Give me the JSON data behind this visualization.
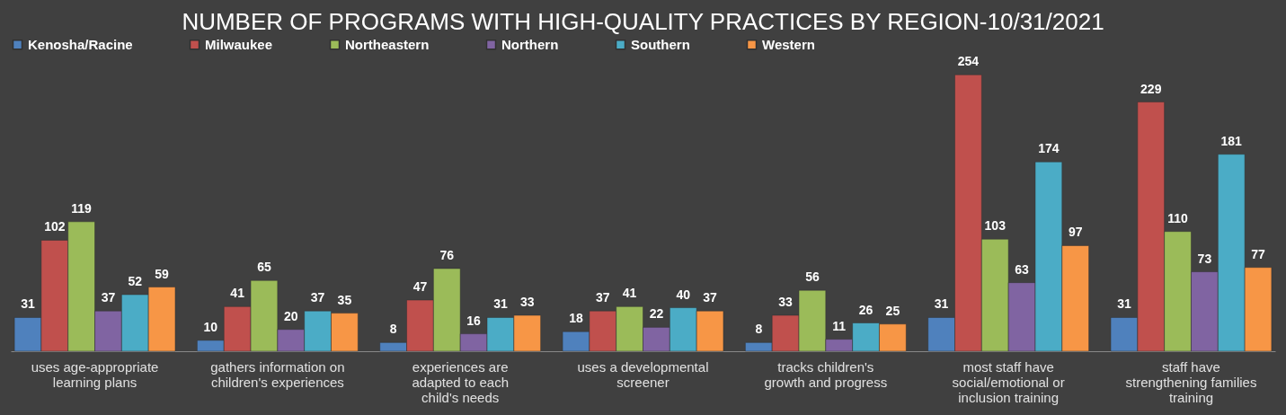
{
  "chart_data": {
    "type": "bar",
    "title": "NUMBER OF PROGRAMS WITH HIGH-QUALITY PRACTICES BY REGION-10/31/2021",
    "categories": [
      "uses age-appropriate learning plans",
      "gathers information on children's experiences",
      "experiences are adapted to each child's needs",
      "uses a developmental screener",
      "tracks children's growth and progress",
      "most staff have social/emotional or inclusion training",
      "staff have strengthening families training"
    ],
    "series": [
      {
        "name": "Kenosha/Racine",
        "color": "#4f81bd",
        "values": [
          31,
          10,
          8,
          18,
          8,
          31,
          31
        ]
      },
      {
        "name": "Milwaukee",
        "color": "#c0504d",
        "values": [
          102,
          41,
          47,
          37,
          33,
          254,
          229
        ]
      },
      {
        "name": "Northeastern",
        "color": "#9bbb59",
        "values": [
          119,
          65,
          76,
          41,
          56,
          103,
          110
        ]
      },
      {
        "name": "Northern",
        "color": "#8064a2",
        "values": [
          37,
          20,
          16,
          22,
          11,
          63,
          73
        ]
      },
      {
        "name": "Southern",
        "color": "#4bacc6",
        "values": [
          52,
          37,
          31,
          40,
          26,
          174,
          181
        ]
      },
      {
        "name": "Western",
        "color": "#f79646",
        "values": [
          59,
          35,
          33,
          37,
          25,
          97,
          77
        ]
      }
    ],
    "data_labels": true,
    "legend": "top",
    "grid": false
  }
}
